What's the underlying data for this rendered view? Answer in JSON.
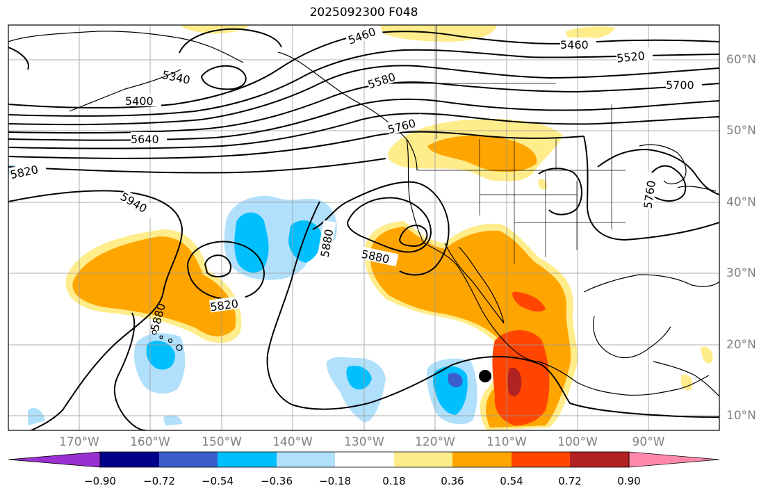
{
  "title": "2025092300 F048",
  "lat_labels": [
    "60°N",
    "50°N",
    "40°N",
    "30°N",
    "20°N",
    "10°N"
  ],
  "lon_labels": [
    "170°W",
    "160°W",
    "150°W",
    "140°W",
    "130°W",
    "120°W",
    "110°W",
    "100°W",
    "90°W"
  ],
  "contour_labels": [
    "5460",
    "5460",
    "5520",
    "5580",
    "5700",
    "5760",
    "5400",
    "5340",
    "5640",
    "5820",
    "5940",
    "5880",
    "5880",
    "5880",
    "5820",
    "5760"
  ],
  "colorbar": {
    "ticks": [
      "−0.90",
      "−0.72",
      "−0.54",
      "−0.36",
      "−0.18",
      "0.18",
      "0.36",
      "0.54",
      "0.72",
      "0.90"
    ],
    "colors": [
      "#9b30d0",
      "#00008b",
      "#3a5fcd",
      "#00bfff",
      "#b0e0fb",
      "#ffffff",
      "#ffec8b",
      "#ffa500",
      "#ff4500",
      "#b22222",
      "#ff88aa"
    ]
  },
  "marker": "storm-center-dot"
}
